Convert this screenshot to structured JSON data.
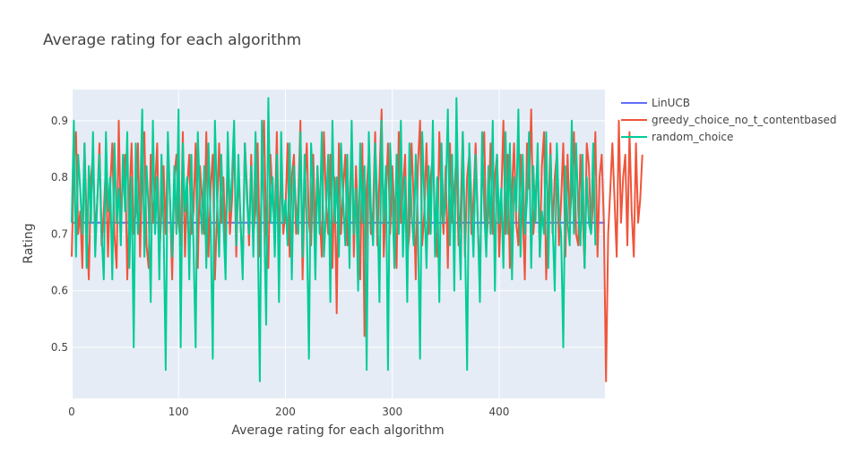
{
  "chart_data": {
    "type": "line",
    "title": "Average rating for each algorithm",
    "xlabel": "Average rating for each algorithm",
    "ylabel": "Rating",
    "xlim": [
      0,
      499
    ],
    "ylim": [
      0.41,
      0.955
    ],
    "x_ticks": [
      0,
      100,
      200,
      300,
      400
    ],
    "x_tick_labels": [
      "0",
      "100",
      "200",
      "300",
      "400"
    ],
    "y_ticks": [
      0.5,
      0.6,
      0.7,
      0.8,
      0.9
    ],
    "y_tick_labels": [
      "0.5",
      "0.6",
      "0.7",
      "0.8",
      "0.9"
    ],
    "grid": true,
    "legend_position": "top-right, outside plot",
    "background_color": "#E5ECF6",
    "series": [
      {
        "name": "LinUCB",
        "color": "#636EFA",
        "x": [
          0,
          499
        ],
        "values": [
          0.72,
          0.72
        ]
      },
      {
        "name": "greedy_choice_no_t_contentbased",
        "color": "#EF553B",
        "x_start": 0,
        "x_step": 2,
        "values": [
          0.66,
          0.82,
          0.88,
          0.7,
          0.74,
          0.64,
          0.86,
          0.72,
          0.62,
          0.8,
          0.84,
          0.7,
          0.76,
          0.86,
          0.68,
          0.74,
          0.82,
          0.66,
          0.78,
          0.86,
          0.7,
          0.64,
          0.9,
          0.72,
          0.8,
          0.84,
          0.62,
          0.76,
          0.86,
          0.7,
          0.74,
          0.86,
          0.66,
          0.82,
          0.88,
          0.68,
          0.64,
          0.84,
          0.72,
          0.78,
          0.86,
          0.66,
          0.74,
          0.82,
          0.7,
          0.86,
          0.76,
          0.62,
          0.8,
          0.84,
          0.72,
          0.68,
          0.88,
          0.66,
          0.78,
          0.84,
          0.7,
          0.74,
          0.86,
          0.64,
          0.82,
          0.76,
          0.7,
          0.88,
          0.66,
          0.78,
          0.84,
          0.62,
          0.74,
          0.86,
          0.72,
          0.8,
          0.68,
          0.84,
          0.7,
          0.76,
          0.88,
          0.66,
          0.82,
          0.72,
          0.64,
          0.86,
          0.78,
          0.68,
          0.84,
          0.7,
          0.74,
          0.86,
          0.66,
          0.8,
          0.9,
          0.7,
          0.64,
          0.84,
          0.76,
          0.72,
          0.88,
          0.68,
          0.82,
          0.7,
          0.74,
          0.86,
          0.66,
          0.8,
          0.84,
          0.7,
          0.76,
          0.9,
          0.62,
          0.78,
          0.86,
          0.72,
          0.68,
          0.84,
          0.7,
          0.82,
          0.74,
          0.66,
          0.88,
          0.76,
          0.7,
          0.84,
          0.64,
          0.8,
          0.56,
          0.86,
          0.7,
          0.78,
          0.84,
          0.68,
          0.74,
          0.88,
          0.66,
          0.82,
          0.72,
          0.62,
          0.86,
          0.52,
          0.78,
          0.84,
          0.7,
          0.74,
          0.88,
          0.68,
          0.8,
          0.92,
          0.66,
          0.76,
          0.86,
          0.7,
          0.82,
          0.74,
          0.64,
          0.88,
          0.72,
          0.78,
          0.84,
          0.66,
          0.7,
          0.86,
          0.76,
          0.62,
          0.82,
          0.9,
          0.68,
          0.74,
          0.86,
          0.7,
          0.8,
          0.84,
          0.72,
          0.66,
          0.88,
          0.76,
          0.7,
          0.82,
          0.64,
          0.86,
          0.72,
          0.78,
          0.84,
          0.68,
          0.74,
          0.88,
          0.66,
          0.8,
          0.84,
          0.7,
          0.76,
          0.86,
          0.72,
          0.62,
          0.82,
          0.88,
          0.68,
          0.74,
          0.86,
          0.7,
          0.8,
          0.84,
          0.66,
          0.76,
          0.9,
          0.7,
          0.84,
          0.64,
          0.78,
          0.86,
          0.72,
          0.68,
          0.84,
          0.74,
          0.62,
          0.86,
          0.78,
          0.92,
          0.7,
          0.76,
          0.84,
          0.66,
          0.82,
          0.88,
          0.62,
          0.74,
          0.86,
          0.7,
          0.8,
          0.84,
          0.68,
          0.76,
          0.86,
          0.66,
          0.84,
          0.72,
          0.78,
          0.88,
          0.7,
          0.68,
          0.84,
          0.74,
          0.64,
          0.86,
          0.82,
          0.7,
          0.76,
          0.88,
          0.66,
          0.8,
          0.84,
          0.72,
          0.44,
          0.7,
          0.78,
          0.86,
          0.76,
          0.66,
          0.9,
          0.72,
          0.8,
          0.84,
          0.68,
          0.88,
          0.74,
          0.66,
          0.86,
          0.72,
          0.76,
          0.84
        ]
      },
      {
        "name": "random_choice",
        "color": "#00CC96",
        "x_start": 0,
        "x_step": 2,
        "values": [
          0.72,
          0.9,
          0.66,
          0.84,
          0.78,
          0.7,
          0.86,
          0.64,
          0.82,
          0.72,
          0.88,
          0.66,
          0.76,
          0.84,
          0.7,
          0.62,
          0.88,
          0.74,
          0.8,
          0.62,
          0.86,
          0.72,
          0.78,
          0.68,
          0.84,
          0.74,
          0.88,
          0.64,
          0.8,
          0.5,
          0.86,
          0.7,
          0.76,
          0.92,
          0.66,
          0.82,
          0.74,
          0.58,
          0.9,
          0.7,
          0.8,
          0.62,
          0.84,
          0.72,
          0.46,
          0.88,
          0.76,
          0.66,
          0.82,
          0.7,
          0.92,
          0.5,
          0.86,
          0.74,
          0.8,
          0.62,
          0.84,
          0.68,
          0.5,
          0.88,
          0.76,
          0.7,
          0.82,
          0.64,
          0.86,
          0.72,
          0.48,
          0.9,
          0.76,
          0.66,
          0.84,
          0.72,
          0.62,
          0.88,
          0.74,
          0.8,
          0.9,
          0.68,
          0.84,
          0.72,
          0.62,
          0.86,
          0.76,
          0.7,
          0.82,
          0.66,
          0.88,
          0.72,
          0.44,
          0.9,
          0.74,
          0.54,
          0.94,
          0.72,
          0.8,
          0.66,
          0.84,
          0.58,
          0.88,
          0.72,
          0.76,
          0.68,
          0.86,
          0.62,
          0.82,
          0.74,
          0.7,
          0.88,
          0.66,
          0.84,
          0.72,
          0.48,
          0.86,
          0.78,
          0.62,
          0.82,
          0.7,
          0.88,
          0.66,
          0.74,
          0.84,
          0.58,
          0.9,
          0.72,
          0.8,
          0.66,
          0.86,
          0.76,
          0.68,
          0.84,
          0.64,
          0.9,
          0.7,
          0.78,
          0.6,
          0.86,
          0.72,
          0.82,
          0.46,
          0.88,
          0.74,
          0.68,
          0.86,
          0.76,
          0.58,
          0.9,
          0.72,
          0.82,
          0.46,
          0.86,
          0.76,
          0.64,
          0.84,
          0.7,
          0.9,
          0.66,
          0.8,
          0.58,
          0.86,
          0.74,
          0.68,
          0.84,
          0.72,
          0.48,
          0.88,
          0.76,
          0.64,
          0.82,
          0.7,
          0.9,
          0.66,
          0.8,
          0.58,
          0.86,
          0.72,
          0.76,
          0.92,
          0.68,
          0.84,
          0.6,
          0.94,
          0.74,
          0.62,
          0.88,
          0.7,
          0.46,
          0.86,
          0.76,
          0.66,
          0.84,
          0.72,
          0.58,
          0.88,
          0.74,
          0.66,
          0.82,
          0.7,
          0.9,
          0.6,
          0.84,
          0.72,
          0.78,
          0.64,
          0.88,
          0.7,
          0.86,
          0.62,
          0.8,
          0.74,
          0.92,
          0.66,
          0.84,
          0.7,
          0.76,
          0.88,
          0.64,
          0.82,
          0.72,
          0.86,
          0.66,
          0.74,
          0.7,
          0.88,
          0.64,
          0.84,
          0.72,
          0.6,
          0.86,
          0.74,
          0.7,
          0.5,
          0.82,
          0.72,
          0.68,
          0.9,
          0.7,
          0.86,
          0.74,
          0.68,
          0.84,
          0.64,
          0.8,
          0.72,
          0.7,
          0.86,
          0.68
        ]
      }
    ]
  }
}
